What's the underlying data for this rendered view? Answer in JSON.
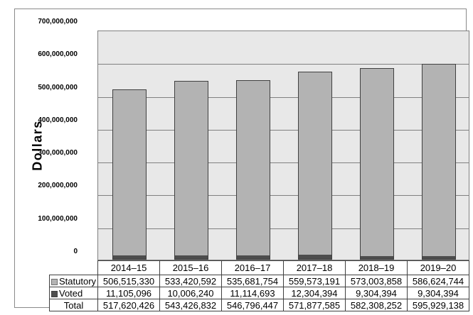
{
  "figure": {
    "y_axis_title": "Dollars"
  },
  "colors": {
    "statutory_fill": "#b3b3b3",
    "voted_fill": "#4d4d4d",
    "bar_border": "#404040",
    "plot_background": "#e8e8e8",
    "gridline": "#808080",
    "statutory_swatch_border": "#707070"
  },
  "chart_data": {
    "type": "bar",
    "stacked": true,
    "ylabel": "Dollars",
    "ylim": [
      0,
      700000000
    ],
    "ytick_step": 100000000,
    "grid": true,
    "legend_position": "table-left",
    "categories": [
      "2014–15",
      "2015–16",
      "2016–17",
      "2017–18",
      "2018–19",
      "2019–20"
    ],
    "series": [
      {
        "name": "Statutory",
        "values": [
          506515330,
          533420592,
          535681754,
          559573191,
          573003858,
          586624744
        ]
      },
      {
        "name": "Voted",
        "values": [
          11105096,
          10006240,
          11114693,
          12304394,
          9304394,
          9304394
        ]
      }
    ],
    "totals": {
      "name": "Total",
      "values": [
        517620426,
        543426832,
        546796447,
        571877585,
        582308252,
        595929138
      ]
    }
  }
}
